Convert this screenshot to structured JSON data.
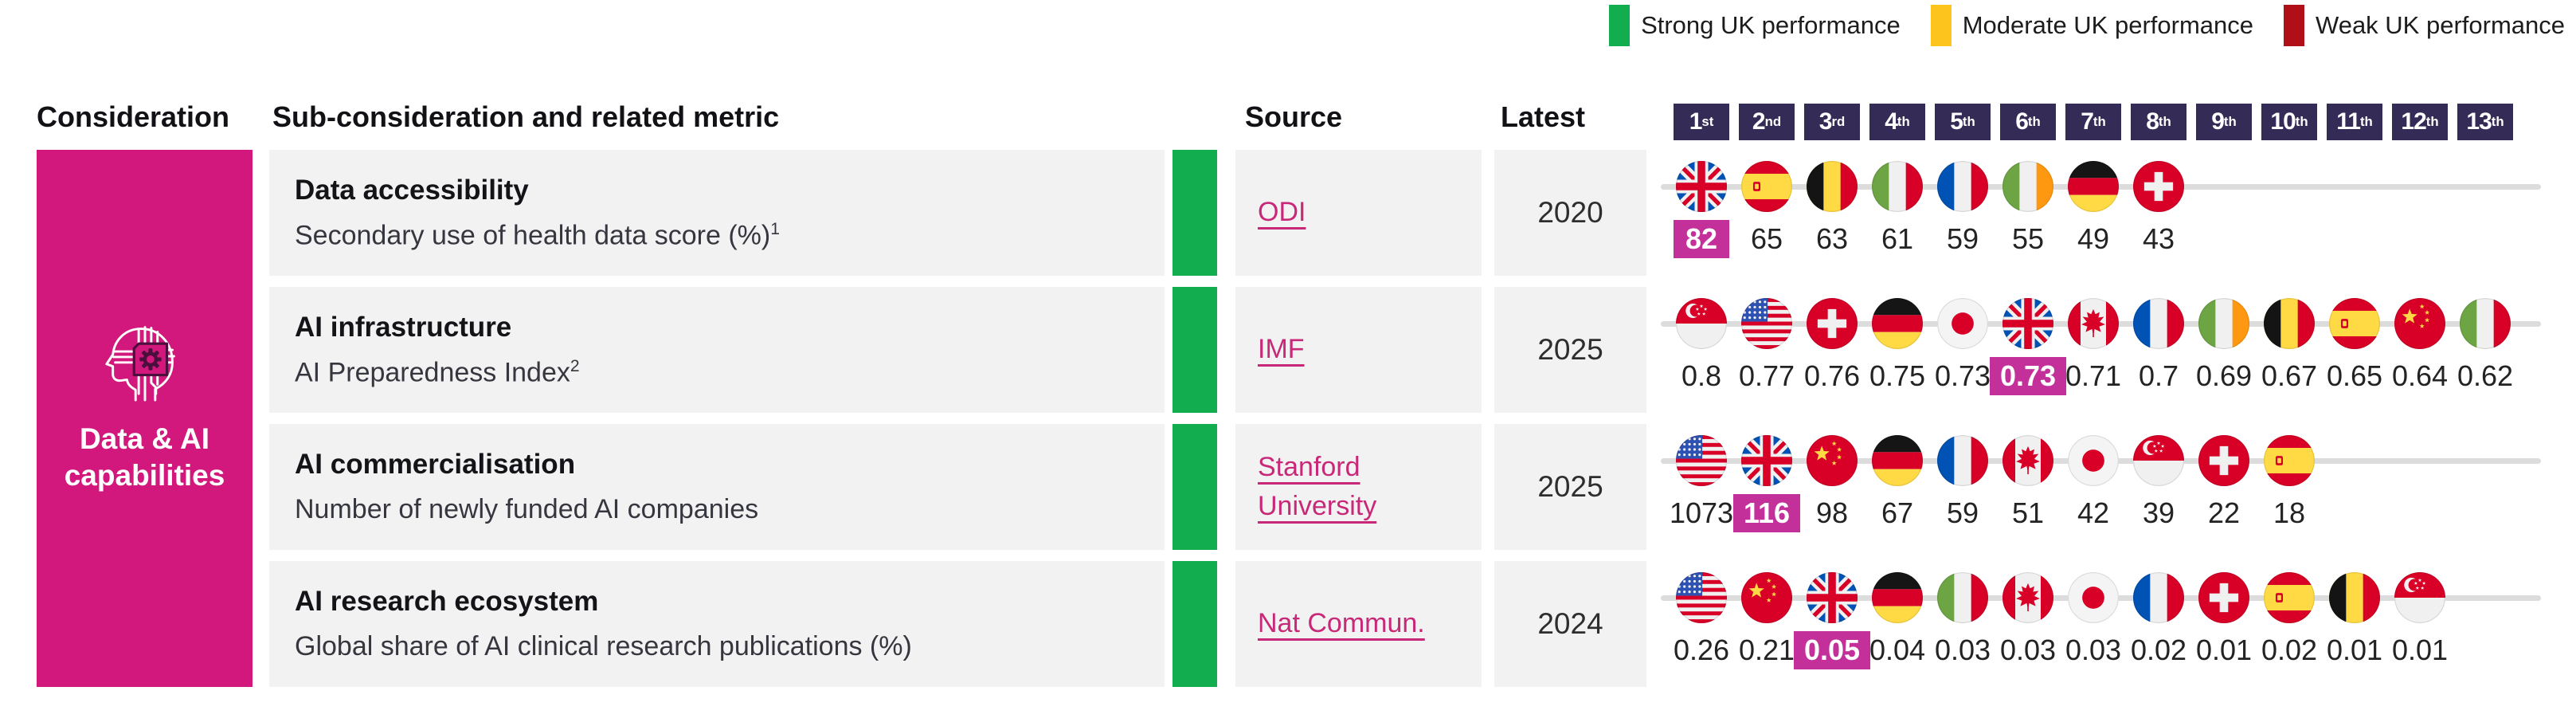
{
  "legend": {
    "items": [
      {
        "label": "Strong UK performance",
        "color": "#12ad4f"
      },
      {
        "label": "Moderate UK performance",
        "color": "#fcc41d"
      },
      {
        "label": "Weak UK performance",
        "color": "#b00f17"
      }
    ]
  },
  "header": {
    "consideration": "Consideration",
    "sub_consideration": "Sub-consideration and related metric",
    "source": "Source",
    "latest": "Latest",
    "ranks": [
      {
        "num": "1",
        "suffix": "st"
      },
      {
        "num": "2",
        "suffix": "nd"
      },
      {
        "num": "3",
        "suffix": "rd"
      },
      {
        "num": "4",
        "suffix": "th"
      },
      {
        "num": "5",
        "suffix": "th"
      },
      {
        "num": "6",
        "suffix": "th"
      },
      {
        "num": "7",
        "suffix": "th"
      },
      {
        "num": "8",
        "suffix": "th"
      },
      {
        "num": "9",
        "suffix": "th"
      },
      {
        "num": "10",
        "suffix": "th"
      },
      {
        "num": "11",
        "suffix": "th"
      },
      {
        "num": "12",
        "suffix": "th"
      },
      {
        "num": "13",
        "suffix": "th"
      }
    ]
  },
  "consideration": {
    "label": "Data & AI capabilities"
  },
  "colors": {
    "brand_pink": "#d2187c",
    "highlight_badge": "#c4309a",
    "rank_badge": "#342b57",
    "row_background": "#f2f2f2",
    "rank_line": "#dcdcdc",
    "link": "#c82878",
    "strong": "#12ad4f",
    "moderate": "#fcc41d",
    "weak": "#b00f17"
  },
  "chart_data": {
    "type": "table",
    "title": "Data & AI capabilities",
    "rank_scale": [
      "1st",
      "2nd",
      "3rd",
      "4th",
      "5th",
      "6th",
      "7th",
      "8th",
      "9th",
      "10th",
      "11th",
      "12th",
      "13th"
    ],
    "legend_position": "top-right",
    "rows": [
      {
        "title": "Data accessibility",
        "metric": "Secondary use of health data score (%)",
        "metric_footnote": "1",
        "performance": "strong",
        "performance_color": "#12ad4f",
        "source": "ODI",
        "latest": "2020",
        "ranking": [
          {
            "rank": 1,
            "country": "United Kingdom",
            "code": "gb",
            "value": "82",
            "is_uk": true
          },
          {
            "rank": 2,
            "country": "Spain",
            "code": "es",
            "value": "65"
          },
          {
            "rank": 3,
            "country": "Belgium",
            "code": "be",
            "value": "63"
          },
          {
            "rank": 4,
            "country": "Italy",
            "code": "it",
            "value": "61"
          },
          {
            "rank": 5,
            "country": "France",
            "code": "fr",
            "value": "59"
          },
          {
            "rank": 6,
            "country": "Ireland",
            "code": "ie",
            "value": "55"
          },
          {
            "rank": 7,
            "country": "Germany",
            "code": "de",
            "value": "49"
          },
          {
            "rank": 8,
            "country": "Switzerland",
            "code": "ch",
            "value": "43"
          }
        ]
      },
      {
        "title": "AI infrastructure",
        "metric": "AI Preparedness Index",
        "metric_footnote": "2",
        "performance": "strong",
        "performance_color": "#12ad4f",
        "source": "IMF",
        "latest": "2025",
        "ranking": [
          {
            "rank": 1,
            "country": "Singapore",
            "code": "sg",
            "value": "0.8"
          },
          {
            "rank": 2,
            "country": "United States",
            "code": "us",
            "value": "0.77"
          },
          {
            "rank": 3,
            "country": "Switzerland",
            "code": "ch",
            "value": "0.76"
          },
          {
            "rank": 4,
            "country": "Germany",
            "code": "de",
            "value": "0.75"
          },
          {
            "rank": 5,
            "country": "Japan",
            "code": "jp",
            "value": "0.73"
          },
          {
            "rank": 6,
            "country": "United Kingdom",
            "code": "gb",
            "value": "0.73",
            "is_uk": true
          },
          {
            "rank": 7,
            "country": "Canada",
            "code": "ca",
            "value": "0.71"
          },
          {
            "rank": 8,
            "country": "France",
            "code": "fr",
            "value": "0.7"
          },
          {
            "rank": 9,
            "country": "Ireland",
            "code": "ie",
            "value": "0.69"
          },
          {
            "rank": 10,
            "country": "Belgium",
            "code": "be",
            "value": "0.67"
          },
          {
            "rank": 11,
            "country": "Spain",
            "code": "es",
            "value": "0.65"
          },
          {
            "rank": 12,
            "country": "China",
            "code": "cn",
            "value": "0.64"
          },
          {
            "rank": 13,
            "country": "Italy",
            "code": "it",
            "value": "0.62"
          }
        ]
      },
      {
        "title": "AI commercialisation",
        "metric": "Number of newly funded AI companies",
        "metric_footnote": "",
        "performance": "strong",
        "performance_color": "#12ad4f",
        "source": "Stanford University",
        "latest": "2025",
        "ranking": [
          {
            "rank": 1,
            "country": "United States",
            "code": "us",
            "value": "1073"
          },
          {
            "rank": 2,
            "country": "United Kingdom",
            "code": "gb",
            "value": "116",
            "is_uk": true
          },
          {
            "rank": 3,
            "country": "China",
            "code": "cn",
            "value": "98"
          },
          {
            "rank": 4,
            "country": "Germany",
            "code": "de",
            "value": "67"
          },
          {
            "rank": 5,
            "country": "France",
            "code": "fr",
            "value": "59"
          },
          {
            "rank": 6,
            "country": "Canada",
            "code": "ca",
            "value": "51"
          },
          {
            "rank": 7,
            "country": "Japan",
            "code": "jp",
            "value": "42"
          },
          {
            "rank": 8,
            "country": "Singapore",
            "code": "sg",
            "value": "39"
          },
          {
            "rank": 9,
            "country": "Switzerland",
            "code": "ch",
            "value": "22"
          },
          {
            "rank": 10,
            "country": "Spain",
            "code": "es",
            "value": "18"
          }
        ]
      },
      {
        "title": "AI research ecosystem",
        "metric": "Global share of AI clinical research publications (%)",
        "metric_footnote": "",
        "performance": "strong",
        "performance_color": "#12ad4f",
        "source": "Nat Commun.",
        "latest": "2024",
        "ranking": [
          {
            "rank": 1,
            "country": "United States",
            "code": "us",
            "value": "0.26"
          },
          {
            "rank": 2,
            "country": "China",
            "code": "cn",
            "value": "0.21"
          },
          {
            "rank": 3,
            "country": "United Kingdom",
            "code": "gb",
            "value": "0.05",
            "is_uk": true
          },
          {
            "rank": 4,
            "country": "Germany",
            "code": "de",
            "value": "0.04"
          },
          {
            "rank": 5,
            "country": "Italy",
            "code": "it",
            "value": "0.03"
          },
          {
            "rank": 6,
            "country": "Canada",
            "code": "ca",
            "value": "0.03"
          },
          {
            "rank": 7,
            "country": "Japan",
            "code": "jp",
            "value": "0.03"
          },
          {
            "rank": 8,
            "country": "France",
            "code": "fr",
            "value": "0.02"
          },
          {
            "rank": 9,
            "country": "Switzerland",
            "code": "ch",
            "value": "0.01"
          },
          {
            "rank": 10,
            "country": "Spain",
            "code": "es",
            "value": "0.02"
          },
          {
            "rank": 11,
            "country": "Belgium",
            "code": "be",
            "value": "0.01"
          },
          {
            "rank": 12,
            "country": "Singapore",
            "code": "sg",
            "value": "0.01"
          }
        ]
      }
    ]
  }
}
